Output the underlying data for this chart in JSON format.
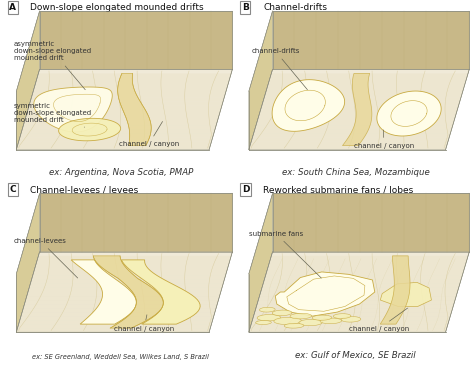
{
  "bg_color": "#ffffff",
  "titles": [
    "Down-slope elongated mounded drifts",
    "Channel-drifts",
    "Channel-levees / levees",
    "Reworked submarine fans / lobes"
  ],
  "letters": [
    "A",
    "B",
    "C",
    "D"
  ],
  "examples": [
    "ex: Argentina, Nova Scotia, PMAP",
    "ex: South China Sea, Mozambique",
    "ex: SE Greenland, Weddell Sea, Wilkes Land, S Brazil",
    "ex: Gulf of Mexico, SE Brazil"
  ],
  "drift_fill": "#f5f0b8",
  "drift_fill2": "#fffde8",
  "drift_outline": "#c8aa40",
  "floor_light": "#f0ead8",
  "floor_mid": "#e8dfc0",
  "floor_dark": "#d4c890",
  "back_wall_top": "#c8b888",
  "back_wall_bot": "#b8a870",
  "side_wall": "#d8cc98",
  "contour_color": "#c8b878",
  "channel_ridge": "#e8d898",
  "label_color": "#333333",
  "title_color": "#111111",
  "title_fontsize": 6.5,
  "label_fontsize": 5.0,
  "example_fontsize": 6.2
}
